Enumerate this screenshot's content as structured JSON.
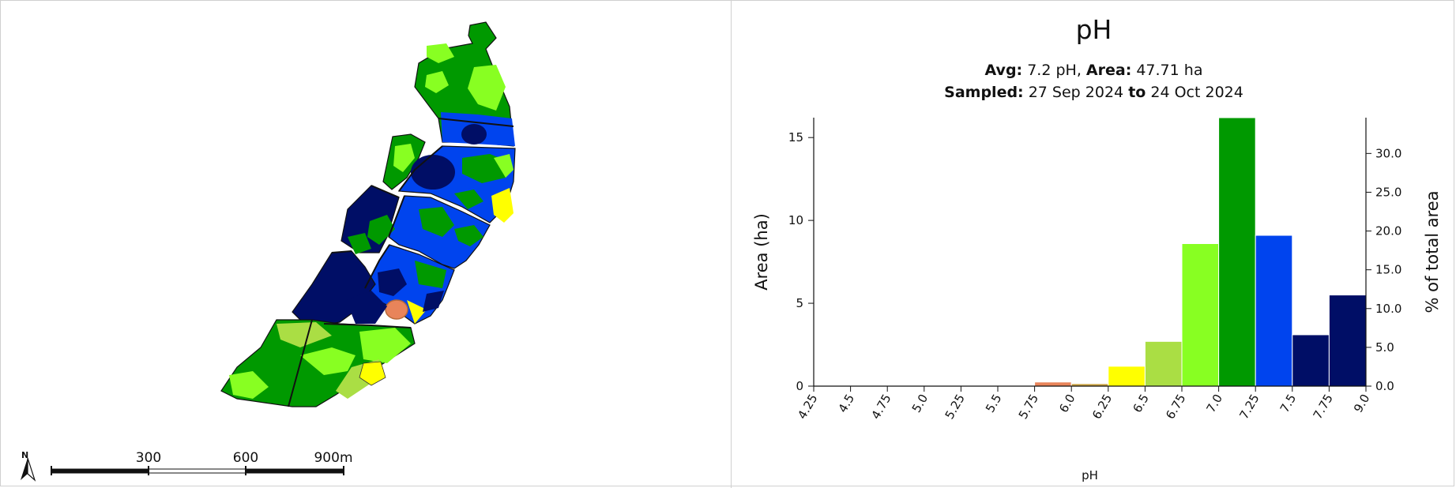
{
  "map": {
    "scale_labels": [
      "300",
      "600",
      "900m"
    ],
    "north_label": "N"
  },
  "header": {
    "title": "pH",
    "avg_label": "Avg:",
    "avg_value": "7.2 pH",
    "area_label": "Area:",
    "area_value": "47.71 ha",
    "sampled_label": "Sampled:",
    "sampled_from": "27 Sep 2024",
    "sampled_to_label": "to",
    "sampled_to": "24 Oct 2024"
  },
  "chart_data": {
    "type": "bar",
    "title": "pH",
    "xlabel": "pH",
    "ylabel": "Area (ha)",
    "y2label": "% of total area",
    "x_ticks": [
      "4.25",
      "4.5",
      "4.75",
      "5.0",
      "5.25",
      "5.5",
      "5.75",
      "6.0",
      "6.25",
      "6.5",
      "6.75",
      "7.0",
      "7.25",
      "7.5",
      "7.75",
      "9.0"
    ],
    "bins": [
      {
        "from": "5.75",
        "to": "6.0",
        "area": 0.25,
        "color": "#e8845a"
      },
      {
        "from": "6.0",
        "to": "6.25",
        "area": 0.15,
        "color": "#c8a040"
      },
      {
        "from": "6.25",
        "to": "6.5",
        "area": 1.2,
        "color": "#ffff00"
      },
      {
        "from": "6.5",
        "to": "6.75",
        "area": 2.7,
        "color": "#aade44"
      },
      {
        "from": "6.75",
        "to": "7.0",
        "area": 8.6,
        "color": "#88ff22"
      },
      {
        "from": "7.0",
        "to": "7.25",
        "area": 16.2,
        "color": "#009900"
      },
      {
        "from": "7.25",
        "to": "7.5",
        "area": 9.1,
        "color": "#0044ee"
      },
      {
        "from": "7.5",
        "to": "7.75",
        "area": 3.1,
        "color": "#000e66"
      },
      {
        "from": "7.75",
        "to": "9.0",
        "area": 5.5,
        "color": "#000e66"
      }
    ],
    "ylim": [
      0,
      16.2
    ],
    "y_ticks": [
      "0",
      "5",
      "10",
      "15"
    ],
    "y2_ticks": [
      "0.0",
      "5.0",
      "10.0",
      "15.0",
      "20.0",
      "25.0",
      "30.0"
    ],
    "grid": false
  }
}
